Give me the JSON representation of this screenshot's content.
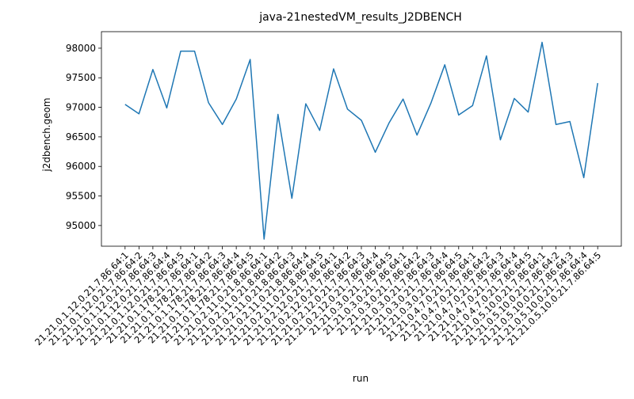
{
  "chart_data": {
    "type": "line",
    "title": "java-21nestedVM_results_J2DBENCH",
    "xlabel": "run",
    "ylabel": "j2dbench.geom",
    "ylim": [
      94650,
      98280
    ],
    "yticks": [
      95000,
      95500,
      96000,
      96500,
      97000,
      97500,
      98000
    ],
    "grid": false,
    "series": [
      {
        "color": "#1f77b4",
        "x": [
          "21.21.0.1.12.0.21.7.86.64:1",
          "21.21.0.1.12.0.21.7.86.64:2",
          "21.21.0.1.12.0.21.7.86.64:3",
          "21.21.0.1.12.0.21.7.86.64:4",
          "21.21.0.1.12.0.21.7.86.64:5",
          "21.21.0.1.178.21.7.86.64:1",
          "21.21.0.1.178.21.7.86.64:2",
          "21.21.0.1.178.21.7.86.64:3",
          "21.21.0.1.178.21.7.86.64:4",
          "21.21.0.1.178.21.7.86.64:5",
          "21.21.0.2.11.0.21.8.86.64:1",
          "21.21.0.2.11.0.21.8.86.64:2",
          "21.21.0.2.11.0.21.8.86.64:3",
          "21.21.0.2.11.0.21.8.86.64:4",
          "21.21.0.2.11.0.21.8.86.64:5",
          "21.21.0.2.12.0.21.7.86.64:1",
          "21.21.0.2.12.0.21.7.86.64:2",
          "21.21.0.2.12.0.21.7.86.64:3",
          "21.21.0.2.12.0.21.7.86.64:4",
          "21.21.0.3.0.21.7.86.64:5",
          "21.21.0.3.0.21.7.86.64:1",
          "21.21.0.3.0.21.7.86.64:2",
          "21.21.0.3.0.21.7.86.64:3",
          "21.21.0.3.0.21.7.86.64:4",
          "21.21.0.3.0.21.7.86.64:5",
          "21.21.0.4.7.0.21.7.86.64:1",
          "21.21.0.4.7.0.21.7.86.64:2",
          "21.21.0.4.7.0.21.7.86.64:3",
          "21.21.0.4.7.0.21.7.86.64:4",
          "21.21.0.4.7.0.21.7.86.64:5",
          "21.21.0.5.10.0.21.7.86.64:1",
          "21.21.0.5.10.0.21.7.86.64:2",
          "21.21.0.5.10.0.21.7.86.64:3",
          "21.21.0.5.10.0.21.7.86.64:4",
          "21.21.0.5.10.0.21.7.86.64:5"
        ],
        "y": [
          97050,
          96890,
          97640,
          96990,
          97950,
          97950,
          97080,
          96710,
          97140,
          97810,
          94770,
          96880,
          95460,
          97060,
          96610,
          97650,
          96970,
          96780,
          96240,
          96740,
          97140,
          96530,
          97070,
          97720,
          96870,
          97030,
          97870,
          96450,
          97150,
          96920,
          98100,
          96710,
          96760,
          95810,
          97410
        ]
      }
    ]
  }
}
